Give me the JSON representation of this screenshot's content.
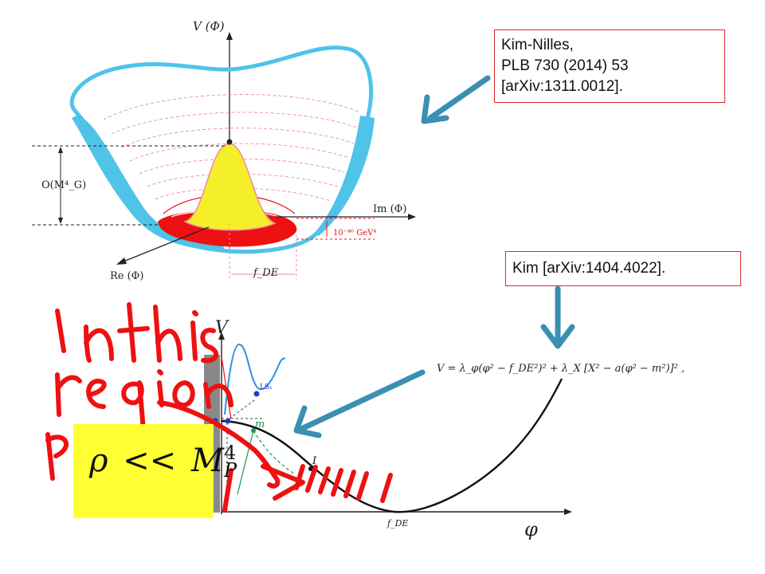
{
  "references": {
    "kim_nilles_lines": [
      "Kim-Nilles,",
      "PLB 730 (2014) 53",
      "[arXiv:1311.0012]."
    ],
    "kim": "Kim [arXiv:1404.4022]."
  },
  "top_plot": {
    "v_label": "V (Φ)",
    "im_label": "Im (Φ)",
    "re_label": "Re (Φ)",
    "height_label": "O(M⁴_G)",
    "gap_label": "10⁻⁴⁶ GeV⁴",
    "fde_label": "f_DE"
  },
  "bottom_plot": {
    "v_label": "V",
    "phi_label": "φ",
    "fde_label": "f_DE",
    "ls_label": "LS₁",
    "m_label": "m",
    "i_label": "I",
    "equation": "V = λ_φ(φ² − f_DE²)² + λ_X [X² − a(φ² − m²)]² ,"
  },
  "handwriting": [
    "In this",
    "region",
    "ρ..."
  ],
  "highlight": {
    "rho": "ρ",
    "op": "<<",
    "M": "M",
    "sup": "4",
    "sub": "P"
  },
  "colors": {
    "reference_border": "#e0282a",
    "bowl": "#4fc3e8",
    "hilltop": "#f5ef2a",
    "red_fill": "#ee1111",
    "arrow": "#3b8fb3",
    "highlight_box": "#ffff33",
    "ink": "#ee1111"
  }
}
